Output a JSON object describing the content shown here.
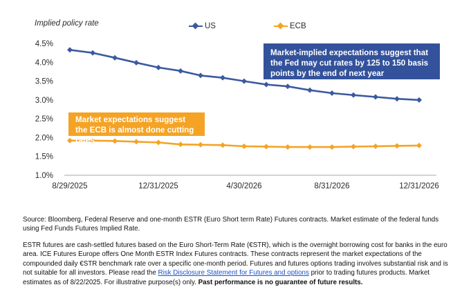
{
  "chart_data": {
    "type": "line",
    "ylabel": "Implied policy rate",
    "ylim": [
      1.0,
      4.5
    ],
    "yticks": [
      "4.5%",
      "4.0%",
      "3.5%",
      "3.0%",
      "2.5%",
      "2.0%",
      "1.5%",
      "1.0%"
    ],
    "xticks": [
      "8/29/2025",
      "12/31/2025",
      "4/30/2026",
      "8/31/2026",
      "12/31/2026"
    ],
    "grid": false,
    "legend_position": "top",
    "x": [
      "2025-08-29",
      "2025-09-30",
      "2025-10-31",
      "2025-11-30",
      "2025-12-31",
      "2026-01-31",
      "2026-02-28",
      "2026-03-31",
      "2026-04-30",
      "2026-05-31",
      "2026-06-30",
      "2026-07-31",
      "2026-08-31",
      "2026-09-30",
      "2026-10-31",
      "2026-11-30",
      "2026-12-31"
    ],
    "series": [
      {
        "name": "US",
        "color": "#3a5a9f",
        "marker": "diamond",
        "values": [
          4.33,
          4.25,
          4.12,
          3.99,
          3.86,
          3.77,
          3.65,
          3.59,
          3.5,
          3.41,
          3.36,
          3.26,
          3.18,
          3.13,
          3.08,
          3.03,
          3.0
        ]
      },
      {
        "name": "ECB",
        "color": "#f4a325",
        "marker": "diamond",
        "values": [
          1.92,
          1.92,
          1.91,
          1.89,
          1.87,
          1.82,
          1.81,
          1.8,
          1.77,
          1.76,
          1.75,
          1.75,
          1.75,
          1.76,
          1.77,
          1.78,
          1.79
        ]
      }
    ],
    "annotations": [
      {
        "series": "US",
        "text": "Market-implied expectations suggest that the Fed may cut rates by 125 to 150 basis points by the end of next year",
        "color": "#33529b"
      },
      {
        "series": "ECB",
        "text": "Market expectations suggest the ECB is almost done cutting rates",
        "color": "#f4a325"
      }
    ]
  },
  "notes": {
    "source": "Source: Bloomberg, Federal Reserve and one-month ESTR (Euro Short term Rate) Futures contracts. Market estimate of the federal funds using Fed Funds Futures Implied Rate.",
    "body_part1": "ESTR futures are cash-settled futures based on the Euro Short-Term Rate (€STR), which is the overnight borrowing cost for banks in the euro area. ICE Futures Europe offers One Month ESTR Index Futures contracts. These contracts represent the market expectations of the compounded daily €STR benchmark rate over a specific one-month period. Futures and futures options trading involves substantial risk and is not suitable for all investors. Please read the ",
    "link_text": "Risk Disclosure Statement for Futures and options",
    "body_part2": " prior to trading futures products. Market estimates as of 8/22/2025. For illustrative purpose(s) only. ",
    "bold_text": "Past performance is no guarantee of future results."
  }
}
